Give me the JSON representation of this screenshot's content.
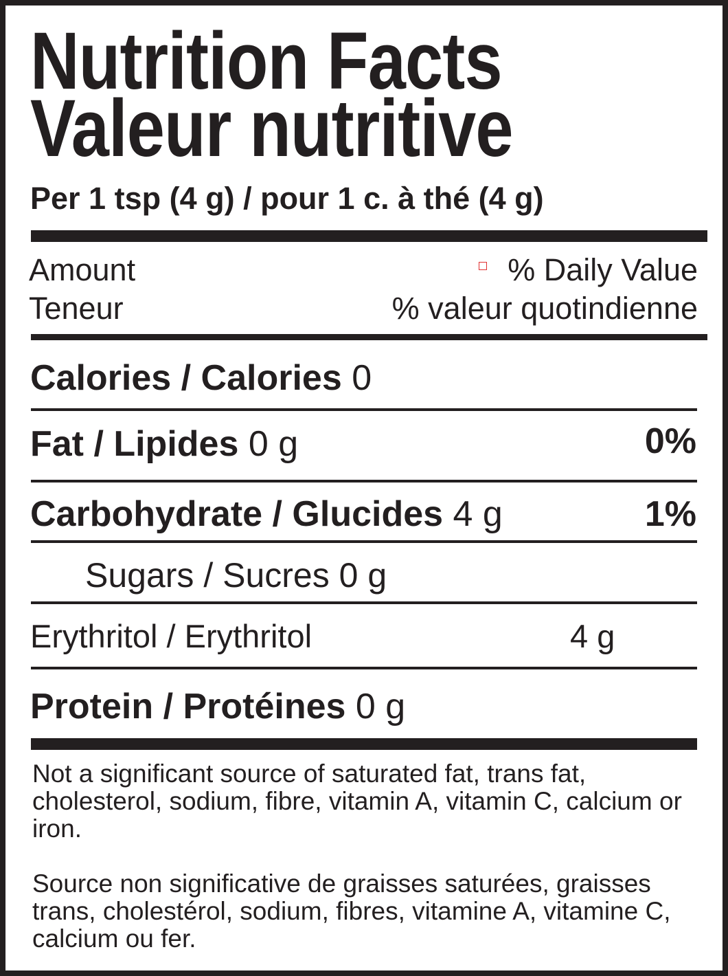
{
  "title_en": "Nutrition Facts",
  "title_fr": "Valeur nutritive",
  "serving": "Per 1 tsp (4 g) / pour 1 c. à thé (4 g)",
  "header": {
    "amount_en": "Amount",
    "amount_fr": "Teneur",
    "dv_en": "% Daily Value",
    "dv_fr": "% valeur quotindienne"
  },
  "rows": [
    {
      "label": "Calories / Calories",
      "amount": "0",
      "dv": ""
    },
    {
      "label": "Fat / Lipides",
      "amount": "0 g",
      "dv": "0%"
    },
    {
      "label": "Carbohydrate / Glucides",
      "amount": "4 g",
      "dv": "1%"
    },
    {
      "label": "Sugars / Sucres",
      "amount": "0 g",
      "dv": ""
    },
    {
      "label": "Erythritol / Erythritol",
      "amount": "4 g",
      "dv": ""
    },
    {
      "label": "Protein / Protéines",
      "amount": "0 g",
      "dv": ""
    }
  ],
  "footnote_en": "Not a significant source of saturated fat, trans fat, cholesterol, sodium, fibre, vitamin A, vitamin C, calcium or iron.",
  "footnote_fr": "Source non significative de graisses saturées, graisses trans, cholestérol, sodium, fibres, vitamine A, vitamine C, calcium ou fer."
}
